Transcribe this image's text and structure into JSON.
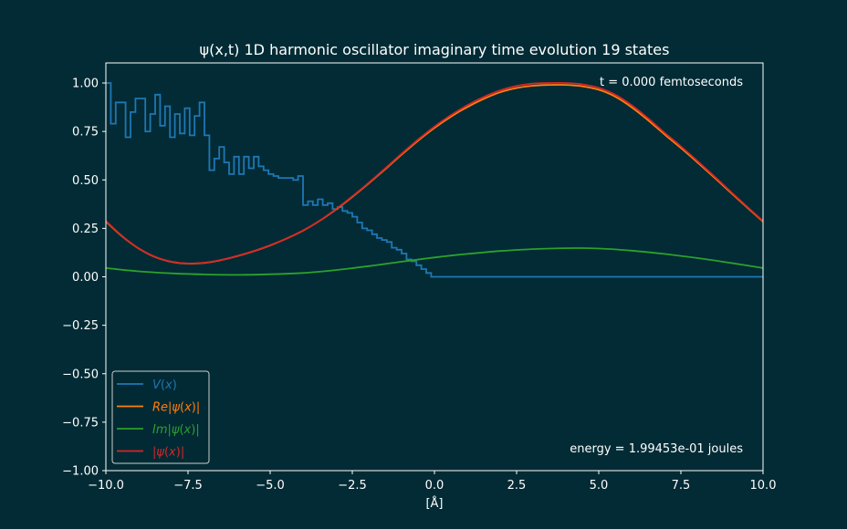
{
  "chart_data": {
    "type": "line",
    "title": "ψ(x,t) 1D harmonic oscillator imaginary time evolution 19 states",
    "xlabel": "[Å]",
    "ylabel": "",
    "xlim": [
      -10,
      10
    ],
    "ylim": [
      -1,
      1
    ],
    "xticks": [
      -10,
      -7.5,
      -5,
      -2.5,
      0,
      2.5,
      5,
      7.5,
      10
    ],
    "xtick_labels": [
      "−10.0",
      "−7.5",
      "−5.0",
      "−2.5",
      "0.0",
      "2.5",
      "5.0",
      "7.5",
      "10.0"
    ],
    "yticks": [
      1,
      0.75,
      0.5,
      0.25,
      0,
      -0.25,
      -0.5,
      -0.75,
      -1
    ],
    "ytick_labels": [
      "1.00",
      "0.75",
      "0.50",
      "0.25",
      "0.00",
      "−0.25",
      "−0.50",
      "−0.75",
      "−1.00"
    ],
    "grid": false,
    "legend_position": "lower-left",
    "annotations": {
      "time": "t = 0.000 femtoseconds",
      "energy": "energy = 1.99453e-01 joules"
    },
    "colors": {
      "background": "#022b35",
      "potential": "#1f77b4",
      "real": "#ff7f0e",
      "imag": "#2ca02c",
      "abs": "#d62728"
    },
    "series": [
      {
        "name": "V(x)",
        "legend_parts": [
          {
            "t": "V",
            "i": true
          },
          {
            "t": "(",
            "i": false
          },
          {
            "t": "x",
            "i": true
          },
          {
            "t": ")",
            "i": false
          }
        ],
        "step": true,
        "x": [
          -10.0,
          -9.85,
          -9.7,
          -9.4,
          -9.25,
          -9.1,
          -8.8,
          -8.65,
          -8.5,
          -8.35,
          -8.2,
          -8.05,
          -7.9,
          -7.75,
          -7.6,
          -7.45,
          -7.3,
          -7.15,
          -7.0,
          -6.85,
          -6.7,
          -6.55,
          -6.4,
          -6.25,
          -6.1,
          -5.95,
          -5.8,
          -5.65,
          -5.5,
          -5.35,
          -5.2,
          -5.05,
          -4.9,
          -4.75,
          -4.6,
          -4.45,
          -4.3,
          -4.15,
          -4.0,
          -3.85,
          -3.7,
          -3.55,
          -3.4,
          -3.25,
          -3.1,
          -2.95,
          -2.8,
          -2.65,
          -2.5,
          -2.35,
          -2.2,
          -2.05,
          -1.9,
          -1.75,
          -1.6,
          -1.45,
          -1.3,
          -1.15,
          -1.0,
          -0.85,
          -0.7,
          -0.55,
          -0.4,
          -0.25,
          -0.1,
          10.0
        ],
        "y": [
          1.0,
          0.79,
          0.9,
          0.72,
          0.85,
          0.92,
          0.75,
          0.84,
          0.94,
          0.78,
          0.88,
          0.72,
          0.84,
          0.74,
          0.87,
          0.73,
          0.83,
          0.9,
          0.73,
          0.55,
          0.61,
          0.67,
          0.59,
          0.53,
          0.62,
          0.53,
          0.62,
          0.56,
          0.62,
          0.57,
          0.55,
          0.53,
          0.52,
          0.51,
          0.51,
          0.51,
          0.5,
          0.52,
          0.37,
          0.39,
          0.37,
          0.4,
          0.37,
          0.38,
          0.35,
          0.36,
          0.34,
          0.33,
          0.31,
          0.28,
          0.25,
          0.24,
          0.22,
          0.2,
          0.19,
          0.18,
          0.15,
          0.14,
          0.12,
          0.09,
          0.08,
          0.06,
          0.04,
          0.02,
          0.0,
          0.0
        ]
      },
      {
        "name": "Re|ψ(x)|",
        "legend_parts": [
          {
            "t": "Re",
            "i": true
          },
          {
            "t": "|",
            "i": false
          },
          {
            "t": "ψ",
            "i": true
          },
          {
            "t": "(",
            "i": false
          },
          {
            "t": "x",
            "i": true
          },
          {
            "t": ")|",
            "i": false
          }
        ],
        "x": [
          -10,
          -9.5,
          -9,
          -8.5,
          -8,
          -7.5,
          -7,
          -6.5,
          -6,
          -5.5,
          -5,
          -4.5,
          -4,
          -3.5,
          -3,
          -2.5,
          -2,
          -1.5,
          -1,
          -0.5,
          0,
          0.5,
          1,
          1.5,
          2,
          2.5,
          3,
          3.5,
          4,
          4.5,
          5,
          5.5,
          6,
          6.5,
          7,
          7.5,
          8,
          8.5,
          9,
          9.5,
          10
        ],
        "y": [
          0.285,
          0.208,
          0.146,
          0.102,
          0.077,
          0.068,
          0.072,
          0.086,
          0.107,
          0.132,
          0.162,
          0.197,
          0.238,
          0.288,
          0.347,
          0.412,
          0.482,
          0.555,
          0.63,
          0.702,
          0.768,
          0.826,
          0.876,
          0.918,
          0.952,
          0.974,
          0.986,
          0.99,
          0.99,
          0.983,
          0.965,
          0.93,
          0.875,
          0.808,
          0.735,
          0.665,
          0.591,
          0.515,
          0.437,
          0.36,
          0.285
        ]
      },
      {
        "name": "Im|ψ(x)|",
        "legend_parts": [
          {
            "t": "Im",
            "i": true
          },
          {
            "t": "|",
            "i": false
          },
          {
            "t": "ψ",
            "i": true
          },
          {
            "t": "(",
            "i": false
          },
          {
            "t": "x",
            "i": true
          },
          {
            "t": ")|",
            "i": false
          }
        ],
        "x": [
          -10,
          -9,
          -8,
          -7,
          -6,
          -5,
          -4,
          -3,
          -2,
          -1,
          0,
          1,
          2,
          3,
          4,
          5,
          6,
          7,
          8,
          9,
          10
        ],
        "y": [
          0.045,
          0.028,
          0.018,
          0.012,
          0.01,
          0.013,
          0.02,
          0.035,
          0.055,
          0.078,
          0.1,
          0.118,
          0.133,
          0.143,
          0.148,
          0.146,
          0.135,
          0.118,
          0.097,
          0.072,
          0.045
        ]
      },
      {
        "name": "|ψ(x)|",
        "legend_parts": [
          {
            "t": "|",
            "i": false
          },
          {
            "t": "ψ",
            "i": true
          },
          {
            "t": "(",
            "i": false
          },
          {
            "t": "x",
            "i": true
          },
          {
            "t": ")|",
            "i": false
          }
        ],
        "x": [
          -10,
          -9.5,
          -9,
          -8.5,
          -8,
          -7.5,
          -7,
          -6.5,
          -6,
          -5.5,
          -5,
          -4.5,
          -4,
          -3.5,
          -3,
          -2.5,
          -2,
          -1.5,
          -1,
          -0.5,
          0,
          0.5,
          1,
          1.5,
          2,
          2.5,
          3,
          3.5,
          4,
          4.5,
          5,
          5.5,
          6,
          6.5,
          7,
          7.5,
          8,
          8.5,
          9,
          9.5,
          10
        ],
        "y": [
          0.288,
          0.21,
          0.147,
          0.103,
          0.078,
          0.069,
          0.073,
          0.087,
          0.108,
          0.133,
          0.163,
          0.198,
          0.239,
          0.289,
          0.349,
          0.415,
          0.485,
          0.559,
          0.635,
          0.708,
          0.775,
          0.834,
          0.885,
          0.928,
          0.962,
          0.985,
          0.997,
          1.0,
          1.0,
          0.993,
          0.975,
          0.94,
          0.885,
          0.818,
          0.744,
          0.673,
          0.598,
          0.521,
          0.442,
          0.364,
          0.288
        ]
      }
    ]
  }
}
